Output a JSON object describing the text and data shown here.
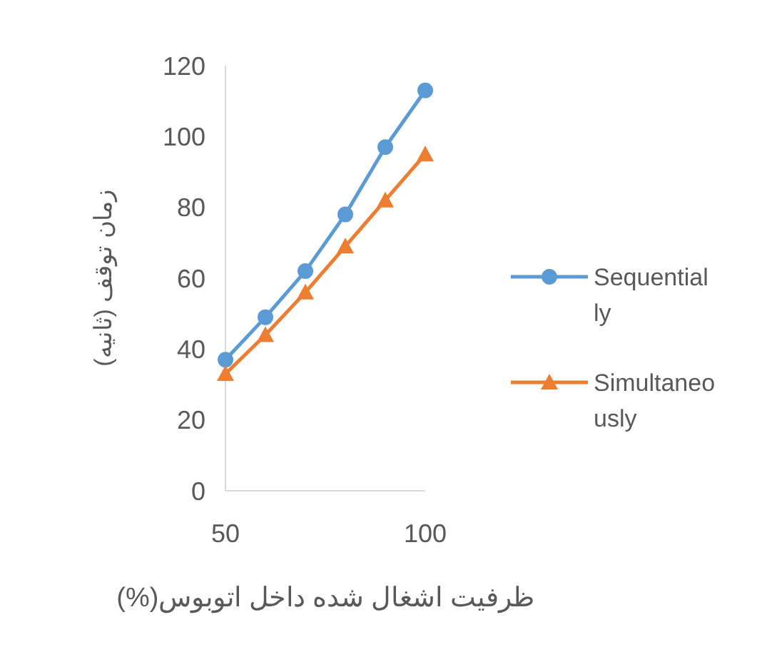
{
  "chart_data": {
    "type": "line",
    "xlabel": "ظرفیت اشغال شده داخل اتوبوس(%)",
    "ylabel": "زمان توقف (ثانیه)",
    "x": [
      50,
      60,
      70,
      80,
      90,
      100
    ],
    "xlim": [
      50,
      100
    ],
    "xticks": [
      50,
      100
    ],
    "ylim": [
      0,
      120
    ],
    "yticks": [
      0,
      20,
      40,
      60,
      80,
      100,
      120
    ],
    "grid": false,
    "legend": "right",
    "series": [
      {
        "name": "Sequentially",
        "color": "#5b9bd5",
        "marker": "circle",
        "values": [
          37,
          49,
          62,
          78,
          97,
          113
        ]
      },
      {
        "name": "Simultaneously",
        "color": "#ed7d31",
        "marker": "triangle",
        "values": [
          33,
          44,
          56,
          69,
          82,
          95
        ]
      }
    ]
  }
}
